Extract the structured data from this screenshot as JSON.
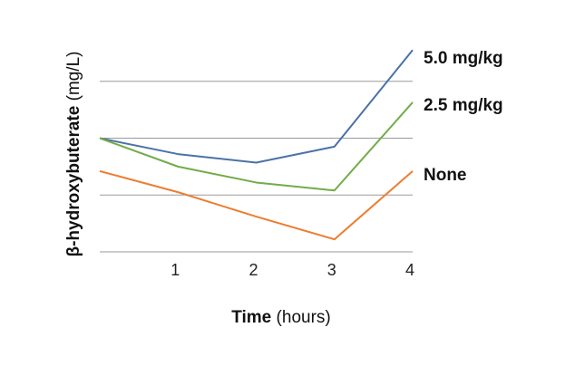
{
  "chart_data": {
    "type": "line",
    "x": [
      0,
      1,
      2,
      3,
      4
    ],
    "xticks": [
      "1",
      "2",
      "3",
      "4"
    ],
    "xlabel_bold": "Time",
    "xlabel_rest": " (hours)",
    "ylabel_bold": "β-hydroxybuterate",
    "ylabel_rest": " (mg/L)",
    "ylim": [
      0,
      4
    ],
    "yticks_shown": false,
    "grid": true,
    "series": [
      {
        "name": "5.0 mg/kg",
        "color": "#4a72a8",
        "values": [
          2.0,
          1.72,
          1.57,
          1.85,
          3.55
        ]
      },
      {
        "name": "2.5 mg/kg",
        "color": "#70ad47",
        "values": [
          2.0,
          1.5,
          1.22,
          1.08,
          2.63
        ]
      },
      {
        "name": "None",
        "color": "#ed7d31",
        "values": [
          1.42,
          1.05,
          0.62,
          0.22,
          1.42
        ]
      }
    ]
  }
}
